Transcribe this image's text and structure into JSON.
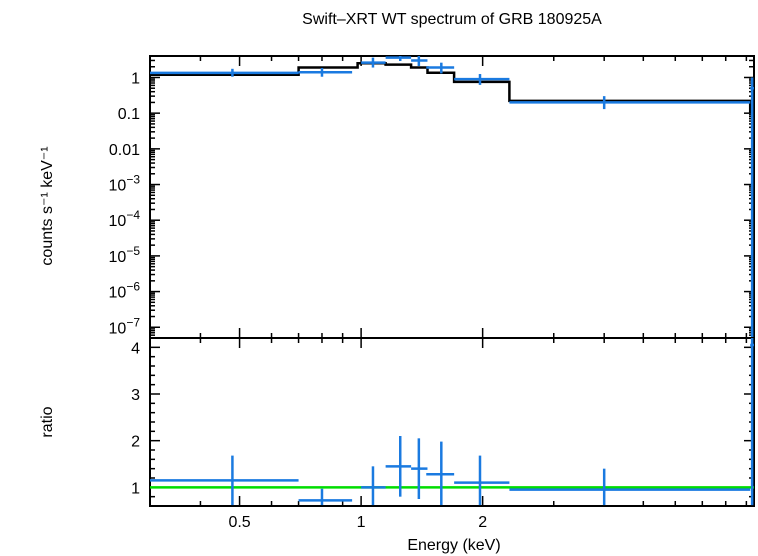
{
  "chart_data": {
    "type": "scatter",
    "title": "Swift–XRT WT spectrum of GRB 180925A",
    "xlabel": "Energy (keV)",
    "x_scale": "log",
    "xlim": [
      0.3,
      9.4
    ],
    "x_ticks": [
      {
        "value": 0.5,
        "label": "0.5"
      },
      {
        "value": 1,
        "label": "1"
      },
      {
        "value": 2,
        "label": "2"
      }
    ],
    "colors": {
      "data": "#1a7ae0",
      "model": "#000000",
      "unity": "#00dd00"
    },
    "top_panel": {
      "ylabel": "counts s⁻¹ keV⁻¹",
      "y_scale": "log",
      "ylim": [
        5e-08,
        4
      ],
      "y_ticks": [
        {
          "value": 1,
          "label": "1",
          "base": "",
          "exp": ""
        },
        {
          "value": 0.1,
          "label": "0.1",
          "base": "",
          "exp": ""
        },
        {
          "value": 0.01,
          "label": "0.01",
          "base": "",
          "exp": ""
        },
        {
          "value": 0.001,
          "label": "",
          "base": "10",
          "exp": "−3"
        },
        {
          "value": 0.0001,
          "label": "",
          "base": "10",
          "exp": "−4"
        },
        {
          "value": 1e-05,
          "label": "",
          "base": "10",
          "exp": "−5"
        },
        {
          "value": 1e-06,
          "label": "",
          "base": "10",
          "exp": "−6"
        },
        {
          "value": 1e-07,
          "label": "",
          "base": "10",
          "exp": "−7"
        }
      ],
      "data": [
        {
          "x": 0.48,
          "xlo": 0.3,
          "xhi": 0.7,
          "y": 1.35,
          "ylo": 1.05,
          "yhi": 1.75
        },
        {
          "x": 0.8,
          "xlo": 0.7,
          "xhi": 0.95,
          "y": 1.4,
          "ylo": 1.05,
          "yhi": 1.85
        },
        {
          "x": 1.07,
          "xlo": 1.0,
          "xhi": 1.15,
          "y": 2.6,
          "ylo": 1.9,
          "yhi": 3.6
        },
        {
          "x": 1.25,
          "xlo": 1.15,
          "xhi": 1.33,
          "y": 3.6,
          "ylo": 2.9,
          "yhi": 4.0
        },
        {
          "x": 1.39,
          "xlo": 1.33,
          "xhi": 1.46,
          "y": 3.0,
          "ylo": 2.1,
          "yhi": 4.0
        },
        {
          "x": 1.58,
          "xlo": 1.45,
          "xhi": 1.7,
          "y": 1.9,
          "ylo": 1.3,
          "yhi": 2.6
        },
        {
          "x": 1.97,
          "xlo": 1.7,
          "xhi": 2.33,
          "y": 0.9,
          "ylo": 0.62,
          "yhi": 1.25
        },
        {
          "x": 4.0,
          "xlo": 2.33,
          "xhi": 9.2,
          "y": 0.2,
          "ylo": 0.13,
          "yhi": 0.3
        },
        {
          "x": 9.3,
          "xlo": 9.2,
          "xhi": 9.4,
          "y": 0.5,
          "ylo": 5e-08,
          "yhi": 1.0
        }
      ],
      "model": [
        {
          "xlo": 0.3,
          "xhi": 0.7,
          "y": 1.2
        },
        {
          "xlo": 0.7,
          "xhi": 0.98,
          "y": 1.9
        },
        {
          "xlo": 0.98,
          "xhi": 1.15,
          "y": 2.5
        },
        {
          "xlo": 1.15,
          "xhi": 1.33,
          "y": 2.3
        },
        {
          "xlo": 1.33,
          "xhi": 1.46,
          "y": 1.9
        },
        {
          "xlo": 1.46,
          "xhi": 1.7,
          "y": 1.35
        },
        {
          "xlo": 1.7,
          "xhi": 2.33,
          "y": 0.75
        },
        {
          "xlo": 2.33,
          "xhi": 9.2,
          "y": 0.22
        },
        {
          "xlo": 9.2,
          "xhi": 9.4,
          "y": 0.11
        }
      ]
    },
    "bottom_panel": {
      "ylabel": "ratio",
      "y_scale": "linear",
      "ylim": [
        0.6,
        4.2
      ],
      "y_ticks": [
        {
          "value": 1,
          "label": "1"
        },
        {
          "value": 2,
          "label": "2"
        },
        {
          "value": 3,
          "label": "3"
        },
        {
          "value": 4,
          "label": "4"
        }
      ],
      "unity_line": 1,
      "data": [
        {
          "x": 0.48,
          "xlo": 0.3,
          "xhi": 0.7,
          "y": 1.15,
          "ylo": 0.62,
          "yhi": 1.68
        },
        {
          "x": 0.8,
          "xlo": 0.7,
          "xhi": 0.95,
          "y": 0.72,
          "ylo": 0.62,
          "yhi": 0.97
        },
        {
          "x": 1.07,
          "xlo": 1.0,
          "xhi": 1.15,
          "y": 1.0,
          "ylo": 0.62,
          "yhi": 1.45
        },
        {
          "x": 1.25,
          "xlo": 1.15,
          "xhi": 1.33,
          "y": 1.45,
          "ylo": 0.8,
          "yhi": 2.1
        },
        {
          "x": 1.39,
          "xlo": 1.33,
          "xhi": 1.46,
          "y": 1.4,
          "ylo": 0.75,
          "yhi": 2.05
        },
        {
          "x": 1.58,
          "xlo": 1.45,
          "xhi": 1.7,
          "y": 1.28,
          "ylo": 0.62,
          "yhi": 1.98
        },
        {
          "x": 1.97,
          "xlo": 1.7,
          "xhi": 2.33,
          "y": 1.1,
          "ylo": 0.62,
          "yhi": 1.68
        },
        {
          "x": 4.0,
          "xlo": 2.33,
          "xhi": 9.2,
          "y": 0.95,
          "ylo": 0.62,
          "yhi": 1.4
        },
        {
          "x": 9.3,
          "xlo": 9.2,
          "xhi": 9.4,
          "y": 4.05,
          "ylo": 0.62,
          "yhi": 4.2
        }
      ]
    }
  }
}
